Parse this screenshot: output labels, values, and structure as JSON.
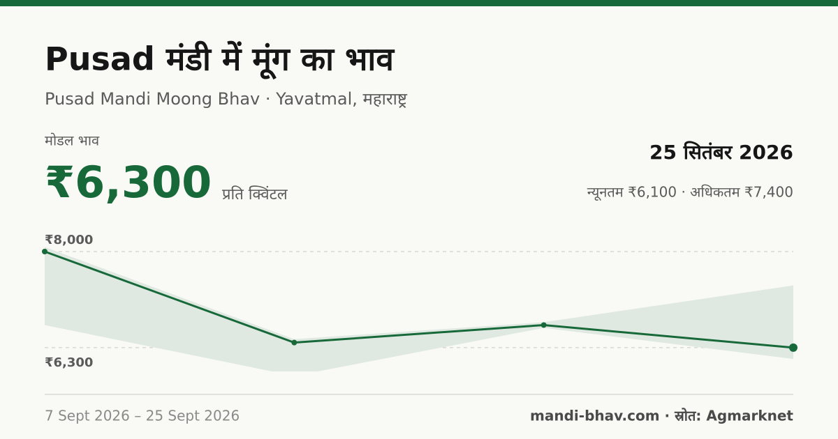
{
  "header": {
    "title": "Pusad मंडी में मूंग का भाव",
    "subtitle": "Pusad Mandi Moong Bhav · Yavatmal, महाराष्ट्र",
    "modal_label": "मोडल भाव",
    "price": "₹6,300",
    "unit": "प्रति क्विंटल",
    "date": "25 सितंबर 2026",
    "range": "न्यूनतम ₹6,100 · अधिकतम ₹7,400"
  },
  "chart_data": {
    "type": "line",
    "categories": [
      null,
      null,
      null,
      null
    ],
    "values": [
      8000,
      6390,
      6700,
      6300
    ],
    "color": "#17693a",
    "band": {
      "min": [
        6700,
        5800,
        6650,
        6100
      ],
      "max": [
        8080,
        6450,
        6750,
        7400
      ],
      "color": "#dfe9e1"
    },
    "ylim": [
      5880,
      8080
    ],
    "yticks": [
      {
        "value": 8000,
        "label": "₹8,000"
      },
      {
        "value": 6300,
        "label": "₹6,300"
      }
    ],
    "grid": true
  },
  "footer": {
    "period": "7 Sept 2026 – 25 Sept 2026",
    "source": "mandi-bhav.com · स्रोत: Agmarknet"
  }
}
